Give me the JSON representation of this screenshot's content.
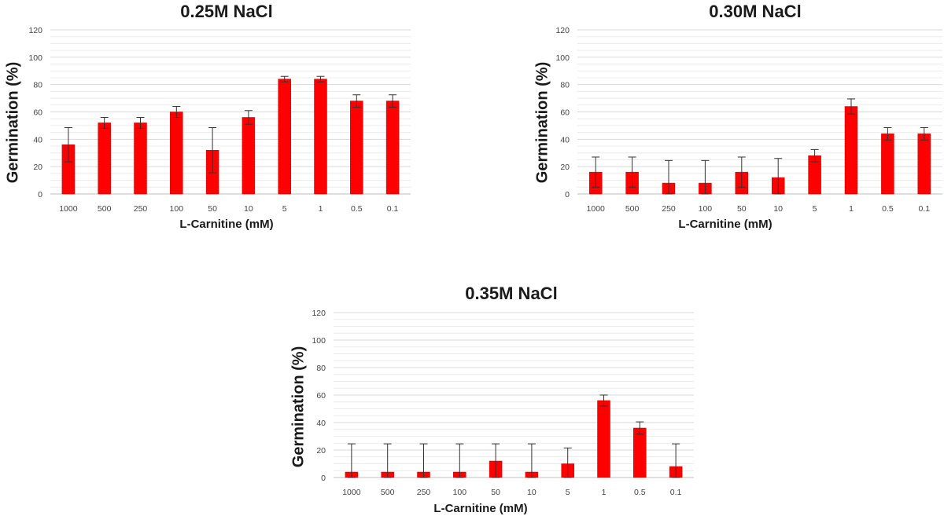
{
  "colors": {
    "bar": "#ff0000",
    "bar_edge": "#cc0000",
    "grid_major": "#d9d9d9",
    "grid_minor": "#ececec",
    "axis": "#bfbfbf",
    "error_bar": "#333333"
  },
  "chart_data": [
    {
      "type": "bar",
      "title": "0.25M NaCl",
      "xlabel": "L-Carnitine (mM)",
      "ylabel": "Germination (%)",
      "ylim": [
        0,
        120
      ],
      "yticks": [
        "0",
        "20",
        "40",
        "60",
        "80",
        "100",
        "120"
      ],
      "grid": "horizontal (major and minor)",
      "categories": [
        "1000",
        "500",
        "250",
        "100",
        "50",
        "10",
        "5",
        "1",
        "0.5",
        "0.1"
      ],
      "values": [
        36,
        52,
        52,
        60,
        32,
        56,
        84,
        84,
        68,
        68
      ],
      "errors": [
        12.5,
        4,
        4,
        4,
        16.5,
        5,
        2,
        2,
        4.5,
        4.5
      ]
    },
    {
      "type": "bar",
      "title": "0.30M NaCl",
      "xlabel": "L-Carnitine (mM)",
      "ylabel": "Germination (%)",
      "ylim": [
        0,
        120
      ],
      "yticks": [
        "0",
        "20",
        "40",
        "60",
        "80",
        "100",
        "120"
      ],
      "grid": "horizontal (major and minor)",
      "categories": [
        "1000",
        "500",
        "250",
        "100",
        "50",
        "10",
        "5",
        "1",
        "0.5",
        "0.1"
      ],
      "values": [
        16,
        16,
        8,
        8,
        16,
        12,
        28,
        64,
        44,
        44
      ],
      "errors": [
        11,
        11,
        16.5,
        16.5,
        11,
        14,
        4.5,
        5.5,
        4.5,
        4.5
      ]
    },
    {
      "type": "bar",
      "title": "0.35M NaCl",
      "xlabel": "L-Carnitine (mM)",
      "ylabel": "Germination (%)",
      "ylim": [
        0,
        120
      ],
      "yticks": [
        "0",
        "20",
        "40",
        "60",
        "80",
        "100",
        "120"
      ],
      "grid": "horizontal (major and minor)",
      "categories": [
        "1000",
        "500",
        "250",
        "100",
        "50",
        "10",
        "5",
        "1",
        "0.5",
        "0.1"
      ],
      "values": [
        4,
        4,
        4,
        4,
        12,
        4,
        10,
        56,
        36,
        8
      ],
      "errors": [
        20.5,
        20.5,
        20.5,
        20.5,
        12.5,
        20.5,
        11.5,
        4,
        4.5,
        16.5
      ]
    }
  ]
}
